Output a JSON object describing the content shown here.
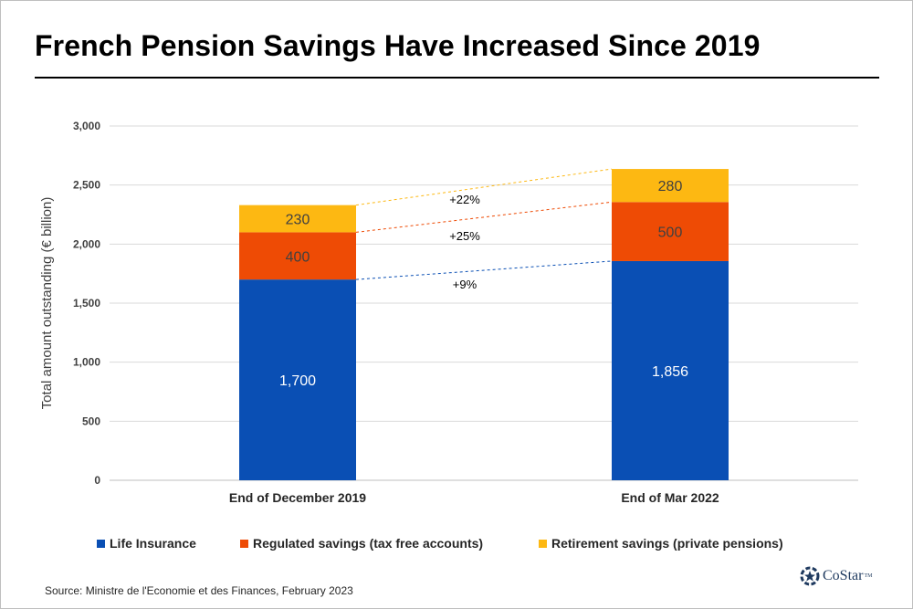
{
  "title": "French Pension Savings Have Increased Since 2019",
  "source": "Source: Ministre de l'Economie et des Finances, February 2023",
  "logo": {
    "text": "CoStar",
    "trademark": "TM",
    "icon": "costar-star-logo"
  },
  "colors": {
    "life_insurance": "#0a4fb4",
    "regulated_savings": "#ee4b05",
    "retirement_savings": "#fdb812",
    "gridline": "#d9d9d9"
  },
  "chart_data": {
    "type": "bar",
    "stacked": true,
    "categories": [
      "End of December 2019",
      "End of Mar 2022"
    ],
    "series": [
      {
        "name": "Life Insurance",
        "values": [
          1700,
          1856
        ],
        "labels": [
          "1,700",
          "1,856"
        ],
        "color": "#0a4fb4"
      },
      {
        "name": "Regulated savings (tax free accounts)",
        "values": [
          400,
          500
        ],
        "labels": [
          "400",
          "500"
        ],
        "color": "#ee4b05"
      },
      {
        "name": "Retirement savings (private pensions)",
        "values": [
          230,
          280
        ],
        "labels": [
          "230",
          "280"
        ],
        "color": "#fdb812"
      }
    ],
    "ylabel": "Total amount outstanding (€ billion)",
    "xlabel": "",
    "ylim": [
      0,
      3000
    ],
    "yticks": [
      0,
      500,
      1000,
      1500,
      2000,
      2500,
      3000
    ],
    "ytick_labels": [
      "0",
      "500",
      "1,000",
      "1,500",
      "2,000",
      "2,500",
      "3,000"
    ],
    "grid": true,
    "legend_position": "bottom",
    "annotations": [
      {
        "text": "+22%",
        "series": "Retirement savings (private pensions)"
      },
      {
        "text": "+25%",
        "series": "Regulated savings (tax free accounts)"
      },
      {
        "text": "+9%",
        "series": "Life Insurance"
      }
    ]
  }
}
